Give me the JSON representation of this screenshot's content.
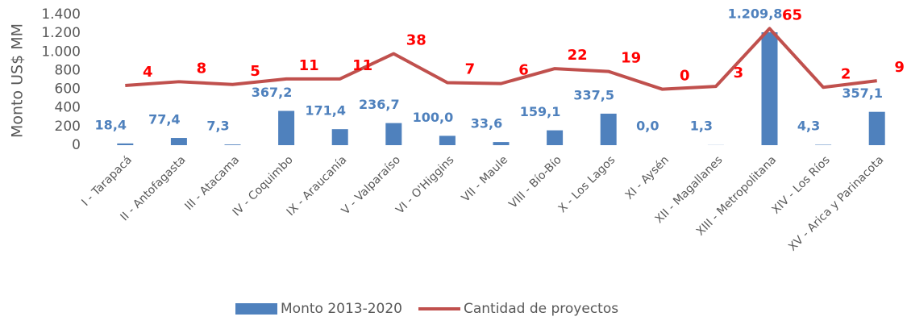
{
  "chart_data": {
    "type": "bar_line",
    "y_label": "Monto US$ MM",
    "categories": [
      "I - Tarapacá",
      "II - Antofagasta",
      "III - Atacama",
      "IV - Coquimbo",
      "IX - Araucanía",
      "V - Valparaíso",
      "VI - O'Higgins",
      "VII - Maule",
      "VIII - Bío-Bío",
      "X - Los Lagos",
      "XI - Aysén",
      "XII - Magallanes",
      "XIII - Metropolitana",
      "XIV - Los Ríos",
      "XV - Arica y Parinacota"
    ],
    "series": [
      {
        "name": "Monto 2013-2020",
        "type": "bar",
        "color": "#4f81bd",
        "label_color": "#4f81bd",
        "values": [
          18.4,
          77.4,
          7.3,
          367.2,
          171.4,
          236.7,
          100.0,
          33.6,
          159.1,
          337.5,
          0.0,
          1.3,
          1209.8,
          4.3,
          357.1
        ],
        "value_labels": [
          "18,4",
          "77,4",
          "7,3",
          "367,2",
          "171,4",
          "236,7",
          "100,0",
          "33,6",
          "159,1",
          "337,5",
          "0,0",
          "1,3",
          "1.209,8",
          "4,3",
          "357,1"
        ]
      },
      {
        "name": "Cantidad de proyectos",
        "type": "line",
        "axis": "y2",
        "color": "#c0504d",
        "label_color": "#ff0000",
        "values": [
          4,
          8,
          5,
          11,
          11,
          38,
          7,
          6,
          22,
          19,
          0,
          3,
          65,
          2,
          9
        ]
      }
    ],
    "ylim": [
      0,
      1400
    ],
    "yticks": [
      0,
      200,
      400,
      600,
      800,
      {
        "value": 1000,
        "label": "1.000"
      },
      {
        "value": 1200,
        "label": "1.200"
      },
      {
        "value": 1400,
        "label": "1.400"
      }
    ],
    "y2lim": [
      -60,
      80
    ],
    "legend": "bottom"
  }
}
